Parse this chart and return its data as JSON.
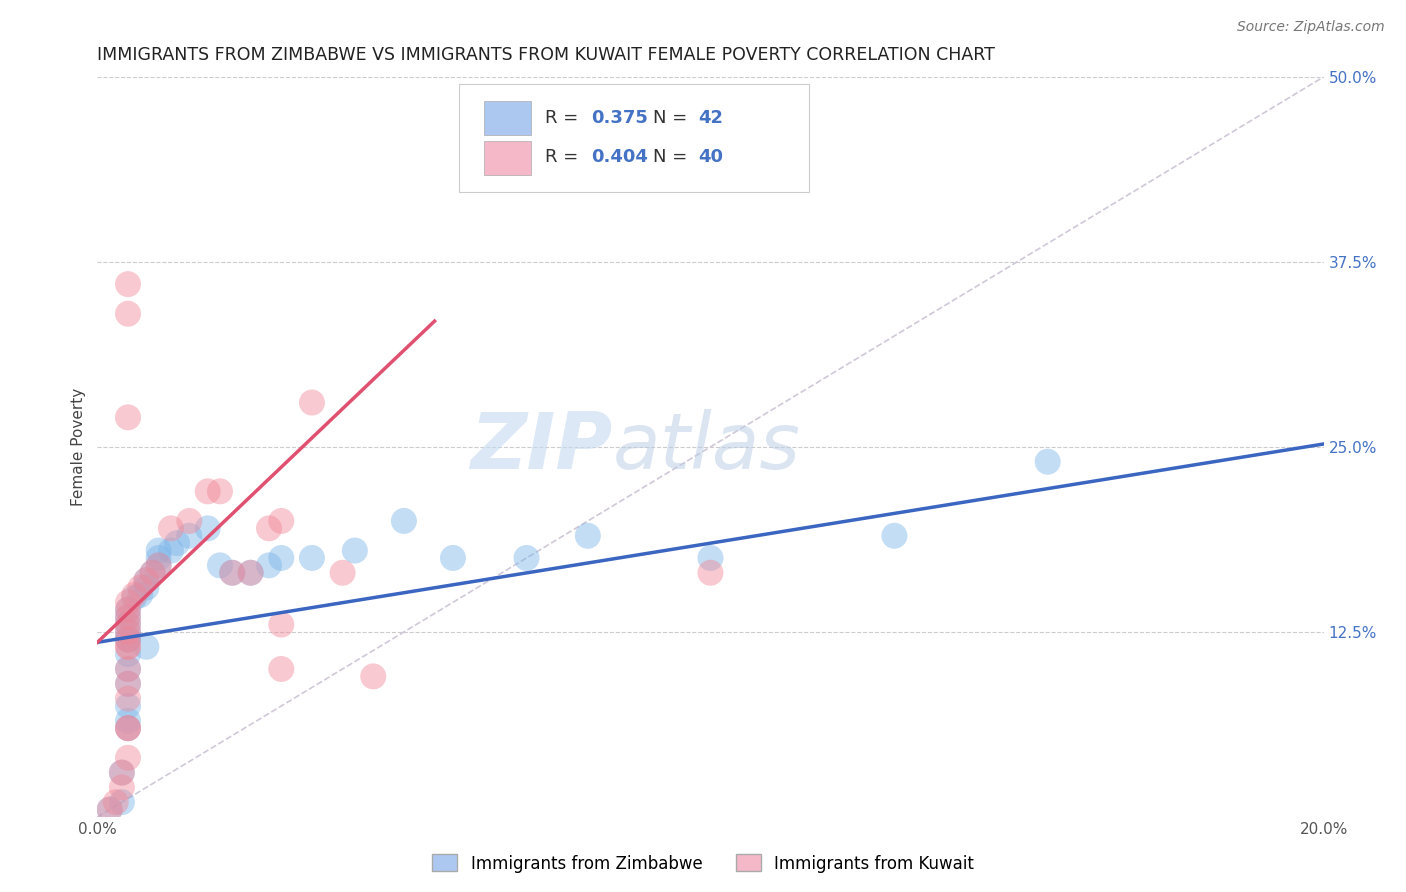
{
  "title": "IMMIGRANTS FROM ZIMBABWE VS IMMIGRANTS FROM KUWAIT FEMALE POVERTY CORRELATION CHART",
  "source": "Source: ZipAtlas.com",
  "ylabel": "Female Poverty",
  "x_min": 0.0,
  "x_max": 0.2,
  "y_min": 0.0,
  "y_max": 0.5,
  "x_ticks": [
    0.0,
    0.05,
    0.1,
    0.15,
    0.2
  ],
  "y_ticks": [
    0.0,
    0.125,
    0.25,
    0.375,
    0.5
  ],
  "x_tick_labels": [
    "0.0%",
    "",
    "",
    "",
    "20.0%"
  ],
  "y_tick_labels": [
    "",
    "12.5%",
    "25.0%",
    "37.5%",
    "50.0%"
  ],
  "legend1_color": "#adc8f0",
  "legend2_color": "#f5b8c8",
  "zimbabwe_color": "#7ab4e8",
  "kuwait_color": "#f08898",
  "line_zimbabwe_color": "#3a65c0",
  "line_kuwait_color": "#e05070",
  "diagonal_color": "#d0c8d8",
  "watermark_zip": "ZIP",
  "watermark_atlas": "atlas",
  "zimbabwe_line_x": [
    0.0,
    0.2
  ],
  "zimbabwe_line_y": [
    0.118,
    0.252
  ],
  "kuwait_line_x": [
    0.0,
    0.055
  ],
  "kuwait_line_y": [
    0.118,
    0.335
  ],
  "zimbabwe_scatter_x": [
    0.002,
    0.004,
    0.004,
    0.005,
    0.005,
    0.005,
    0.005,
    0.005,
    0.005,
    0.005,
    0.005,
    0.005,
    0.005,
    0.005,
    0.006,
    0.007,
    0.008,
    0.008,
    0.009,
    0.01,
    0.01,
    0.012,
    0.013,
    0.015,
    0.018,
    0.02,
    0.022,
    0.025,
    0.028,
    0.03,
    0.035,
    0.042,
    0.05,
    0.058,
    0.07,
    0.08,
    0.1,
    0.13,
    0.155,
    0.005,
    0.008,
    0.01
  ],
  "zimbabwe_scatter_y": [
    0.005,
    0.01,
    0.03,
    0.06,
    0.065,
    0.075,
    0.09,
    0.1,
    0.11,
    0.12,
    0.125,
    0.13,
    0.135,
    0.14,
    0.148,
    0.15,
    0.155,
    0.16,
    0.165,
    0.17,
    0.175,
    0.18,
    0.185,
    0.19,
    0.195,
    0.17,
    0.165,
    0.165,
    0.17,
    0.175,
    0.175,
    0.18,
    0.2,
    0.175,
    0.175,
    0.19,
    0.175,
    0.19,
    0.24,
    0.12,
    0.115,
    0.18
  ],
  "kuwait_scatter_x": [
    0.002,
    0.003,
    0.004,
    0.004,
    0.005,
    0.005,
    0.005,
    0.005,
    0.005,
    0.005,
    0.005,
    0.005,
    0.005,
    0.005,
    0.005,
    0.005,
    0.005,
    0.006,
    0.007,
    0.008,
    0.009,
    0.01,
    0.012,
    0.015,
    0.018,
    0.02,
    0.022,
    0.025,
    0.028,
    0.03,
    0.03,
    0.03,
    0.035,
    0.04,
    0.045,
    0.1,
    0.005,
    0.005,
    0.005,
    0.005
  ],
  "kuwait_scatter_y": [
    0.005,
    0.01,
    0.02,
    0.03,
    0.04,
    0.06,
    0.06,
    0.08,
    0.09,
    0.1,
    0.115,
    0.12,
    0.125,
    0.13,
    0.135,
    0.14,
    0.145,
    0.15,
    0.155,
    0.16,
    0.165,
    0.17,
    0.195,
    0.2,
    0.22,
    0.22,
    0.165,
    0.165,
    0.195,
    0.2,
    0.13,
    0.1,
    0.28,
    0.165,
    0.095,
    0.165,
    0.27,
    0.34,
    0.36,
    0.115
  ]
}
